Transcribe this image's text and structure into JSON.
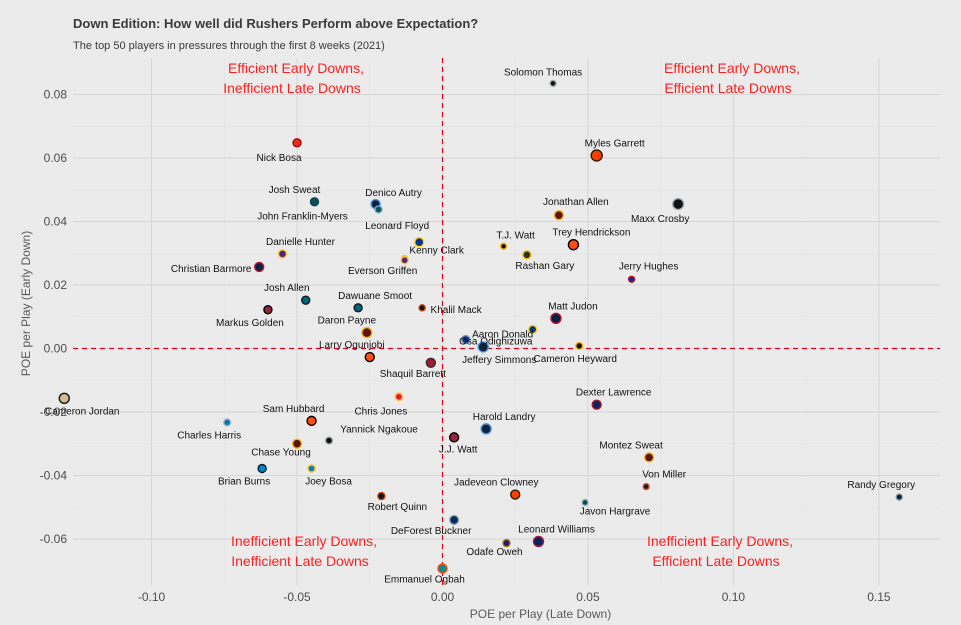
{
  "chart_data": {
    "type": "scatter",
    "title": "Down Edition: How well did Rushers Perform above Expectation?",
    "subtitle": "The top 50 players in pressures through the first 8 weeks (2021)",
    "xlabel": "POE per Play (Late Down)",
    "ylabel": "POE per Play (Early Down)",
    "xlim": [
      -0.127,
      0.171
    ],
    "ylim": [
      -0.0745,
      0.0915
    ],
    "xticks": [
      -0.1,
      -0.05,
      0.0,
      0.05,
      0.1,
      0.15
    ],
    "xtick_labels": [
      "-0.10",
      "-0.05",
      "0.00",
      "0.05",
      "0.10",
      "0.15"
    ],
    "yticks": [
      -0.06,
      -0.04,
      -0.02,
      0.0,
      0.02,
      0.04,
      0.06,
      0.08
    ],
    "ytick_labels": [
      "-0.06",
      "-0.04",
      "-0.02",
      "0.00",
      "0.02",
      "0.04",
      "0.06",
      "0.08"
    ],
    "grid": true,
    "reference_lines": {
      "x": 0,
      "y": 0
    },
    "quadrant_labels": [
      {
        "lines": [
          "Efficient Early Downs,",
          "Inefficient Late Downs"
        ],
        "pos": "top-left"
      },
      {
        "lines": [
          "Efficient Early Downs,",
          "Efficient Late Downs"
        ],
        "pos": "top-right"
      },
      {
        "lines": [
          "Inefficient Early Downs,",
          "Inefficient Late Downs"
        ],
        "pos": "bottom-left"
      },
      {
        "lines": [
          "Inefficient Early Downs,",
          "Efficient Late Downs"
        ],
        "pos": "bottom-right"
      }
    ],
    "points": [
      {
        "name": "Solomon Thomas",
        "x": 0.038,
        "y": 0.0835,
        "fill": "#111111",
        "edge": "#a5acaf",
        "size": 3
      },
      {
        "name": "Nick Bosa",
        "x": -0.05,
        "y": 0.0648,
        "fill": "#e0301e",
        "edge": "#aa0000",
        "size": 4
      },
      {
        "name": "Myles Garrett",
        "x": 0.053,
        "y": 0.0608,
        "fill": "#ff3c00",
        "edge": "#311d00",
        "size": 5.5
      },
      {
        "name": "Maxx Crosby",
        "x": 0.081,
        "y": 0.0455,
        "fill": "#111111",
        "edge": "#a5acaf",
        "size": 5.5
      },
      {
        "name": "Josh Sweat",
        "x": -0.044,
        "y": 0.0462,
        "fill": "#0f4c55",
        "edge": "#004c54",
        "size": 4
      },
      {
        "name": "Denico Autry",
        "x": -0.023,
        "y": 0.0455,
        "fill": "#0c2340",
        "edge": "#4b92db",
        "size": 4.5
      },
      {
        "name": "John Franklin-Myers",
        "x": -0.022,
        "y": 0.0438,
        "fill": "#125740",
        "edge": "#6fa8dc",
        "size": 3.5
      },
      {
        "name": "Jonathan Allen",
        "x": 0.04,
        "y": 0.042,
        "fill": "#5a1414",
        "edge": "#ffb612",
        "size": 4.5
      },
      {
        "name": "Leonard Floyd",
        "x": -0.008,
        "y": 0.0335,
        "fill": "#003594",
        "edge": "#ffd100",
        "size": 4.5
      },
      {
        "name": "Trey Hendrickson",
        "x": 0.045,
        "y": 0.0327,
        "fill": "#fb4f14",
        "edge": "#000000",
        "size": 5
      },
      {
        "name": "T.J. Watt",
        "x": 0.021,
        "y": 0.0322,
        "fill": "#101820",
        "edge": "#ffb612",
        "size": 3
      },
      {
        "name": "Danielle Hunter",
        "x": -0.055,
        "y": 0.0298,
        "fill": "#4f2683",
        "edge": "#ffc62f",
        "size": 4
      },
      {
        "name": "Rashan Gary",
        "x": 0.029,
        "y": 0.0295,
        "fill": "#203731",
        "edge": "#ffb612",
        "size": 4
      },
      {
        "name": "Kenny Clark",
        "x": -0.013,
        "y": 0.0283,
        "fill": "#203731",
        "edge": "#ffb612",
        "size": 3
      },
      {
        "name": "Everson Griffen",
        "x": -0.013,
        "y": 0.0278,
        "fill": "#4f2683",
        "edge": "#ffc62f",
        "size": 3.5
      },
      {
        "name": "Christian Barmore",
        "x": -0.063,
        "y": 0.0257,
        "fill": "#002244",
        "edge": "#c60c30",
        "size": 4.5
      },
      {
        "name": "Jerry Hughes",
        "x": 0.065,
        "y": 0.0218,
        "fill": "#00338d",
        "edge": "#c60c30",
        "size": 3
      },
      {
        "name": "Josh Allen",
        "x": -0.047,
        "y": 0.0152,
        "fill": "#006778",
        "edge": "#101820",
        "size": 4
      },
      {
        "name": "Dawuane Smoot",
        "x": -0.029,
        "y": 0.0128,
        "fill": "#006778",
        "edge": "#101820",
        "size": 4
      },
      {
        "name": "Khalil Mack",
        "x": -0.007,
        "y": 0.0128,
        "fill": "#0b162a",
        "edge": "#c83803",
        "size": 3
      },
      {
        "name": "Markus Golden",
        "x": -0.06,
        "y": 0.0122,
        "fill": "#97233f",
        "edge": "#000000",
        "size": 4
      },
      {
        "name": "Matt Judon",
        "x": 0.039,
        "y": 0.0095,
        "fill": "#002244",
        "edge": "#c60c30",
        "size": 5
      },
      {
        "name": "Aaron Donald",
        "x": 0.031,
        "y": 0.006,
        "fill": "#003594",
        "edge": "#ffd100",
        "size": 4
      },
      {
        "name": "Daron Payne",
        "x": -0.026,
        "y": 0.005,
        "fill": "#5a1414",
        "edge": "#ffb612",
        "size": 5
      },
      {
        "name": "Osa Odighizuwa",
        "x": 0.008,
        "y": 0.0028,
        "fill": "#003594",
        "edge": "#869397",
        "size": 4
      },
      {
        "name": "Jeffery Simmons",
        "x": 0.014,
        "y": 0.0005,
        "fill": "#0c2340",
        "edge": "#4b92db",
        "size": 5
      },
      {
        "name": "Cameron Heyward",
        "x": 0.047,
        "y": 0.0008,
        "fill": "#101820",
        "edge": "#ffb612",
        "size": 3.5
      },
      {
        "name": "Larry Ogunjobi",
        "x": -0.025,
        "y": -0.0027,
        "fill": "#fb4f14",
        "edge": "#000000",
        "size": 4.5
      },
      {
        "name": "Shaquil Barrett",
        "x": -0.004,
        "y": -0.0045,
        "fill": "#a71930",
        "edge": "#322f2b",
        "size": 4.5
      },
      {
        "name": "Cameron Jordan",
        "x": -0.13,
        "y": -0.0157,
        "fill": "#d3bc8d",
        "edge": "#101820",
        "size": 5
      },
      {
        "name": "Chris Jones",
        "x": -0.015,
        "y": -0.0152,
        "fill": "#e31837",
        "edge": "#ffb81c",
        "size": 3.5
      },
      {
        "name": "Dexter Lawrence",
        "x": 0.053,
        "y": -0.0177,
        "fill": "#0b2265",
        "edge": "#a71930",
        "size": 4.5
      },
      {
        "name": "Sam Hubbard",
        "x": -0.045,
        "y": -0.0228,
        "fill": "#fb4f14",
        "edge": "#000000",
        "size": 4.5
      },
      {
        "name": "Harold Landry",
        "x": 0.015,
        "y": -0.0253,
        "fill": "#0c2340",
        "edge": "#4b92db",
        "size": 5
      },
      {
        "name": "Charles Harris",
        "x": -0.074,
        "y": -0.0233,
        "fill": "#0076b6",
        "edge": "#b0b7bc",
        "size": 3.5
      },
      {
        "name": "J.J. Watt",
        "x": 0.004,
        "y": -0.028,
        "fill": "#97233f",
        "edge": "#000000",
        "size": 4.5
      },
      {
        "name": "Yannick Ngakoue",
        "x": -0.039,
        "y": -0.029,
        "fill": "#111111",
        "edge": "#a5acaf",
        "size": 3.5
      },
      {
        "name": "Chase Young",
        "x": -0.05,
        "y": -0.03,
        "fill": "#5a1414",
        "edge": "#ffb612",
        "size": 4.5
      },
      {
        "name": "Montez Sweat",
        "x": 0.071,
        "y": -0.0343,
        "fill": "#5a1414",
        "edge": "#ffb612",
        "size": 4.5
      },
      {
        "name": "Brian Burns",
        "x": -0.062,
        "y": -0.0378,
        "fill": "#0085ca",
        "edge": "#101820",
        "size": 4
      },
      {
        "name": "Joey Bosa",
        "x": -0.045,
        "y": -0.0378,
        "fill": "#0080c6",
        "edge": "#ffc20e",
        "size": 3.5
      },
      {
        "name": "Von Miller",
        "x": 0.07,
        "y": -0.0435,
        "fill": "#002244",
        "edge": "#fb4f14",
        "size": 3
      },
      {
        "name": "Randy Gregory",
        "x": 0.157,
        "y": -0.0468,
        "fill": "#041e42",
        "edge": "#869397",
        "size": 3
      },
      {
        "name": "Jadeveon Clowney",
        "x": 0.025,
        "y": -0.046,
        "fill": "#ff3c00",
        "edge": "#311d00",
        "size": 4.5
      },
      {
        "name": "Robert Quinn",
        "x": -0.021,
        "y": -0.0465,
        "fill": "#0b162a",
        "edge": "#c83803",
        "size": 3.5
      },
      {
        "name": "Javon Hargrave",
        "x": 0.049,
        "y": -0.0485,
        "fill": "#004c54",
        "edge": "#a5acaf",
        "size": 3
      },
      {
        "name": "DeForest Buckner",
        "x": 0.004,
        "y": -0.054,
        "fill": "#002c5f",
        "edge": "#a2aaad",
        "size": 4.5
      },
      {
        "name": "Leonard Williams",
        "x": 0.033,
        "y": -0.0608,
        "fill": "#0b2265",
        "edge": "#a71930",
        "size": 5
      },
      {
        "name": "Odafe Oweh",
        "x": 0.022,
        "y": -0.0613,
        "fill": "#241773",
        "edge": "#9e7c0c",
        "size": 3.5
      },
      {
        "name": "Emmanuel Ogbah",
        "x": 0.0,
        "y": -0.0693,
        "fill": "#008e97",
        "edge": "#fc4c02",
        "size": 4.5
      }
    ]
  }
}
